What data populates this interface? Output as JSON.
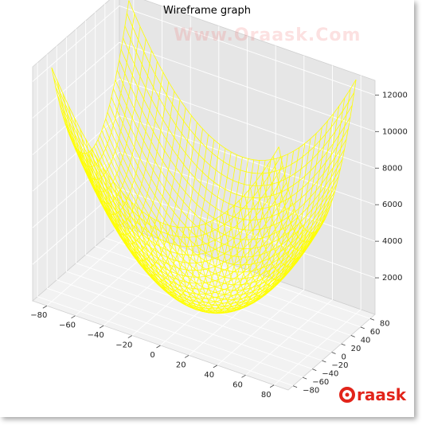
{
  "watermark_text": "Www.Oraask.Com",
  "logo": {
    "text": "raask",
    "color": "#e2241a"
  },
  "chart_data": {
    "type": "wireframe3d",
    "title": "Wireframe graph",
    "x_ticks": [
      -80,
      -60,
      -40,
      -20,
      0,
      20,
      40,
      60,
      80
    ],
    "y_ticks": [
      -80,
      -60,
      -40,
      -20,
      0,
      20,
      40,
      60,
      80
    ],
    "z_ticks": [
      2000,
      4000,
      6000,
      8000,
      10000,
      12000
    ],
    "xlim": [
      -90,
      90
    ],
    "ylim": [
      -90,
      90
    ],
    "zlim": [
      0,
      12800
    ],
    "surface": "z = x^2 + y^2",
    "grid_range": [
      -80,
      80
    ],
    "wire_color": "#ffff00",
    "grid": true,
    "pane_color": "#f2f2f2"
  }
}
